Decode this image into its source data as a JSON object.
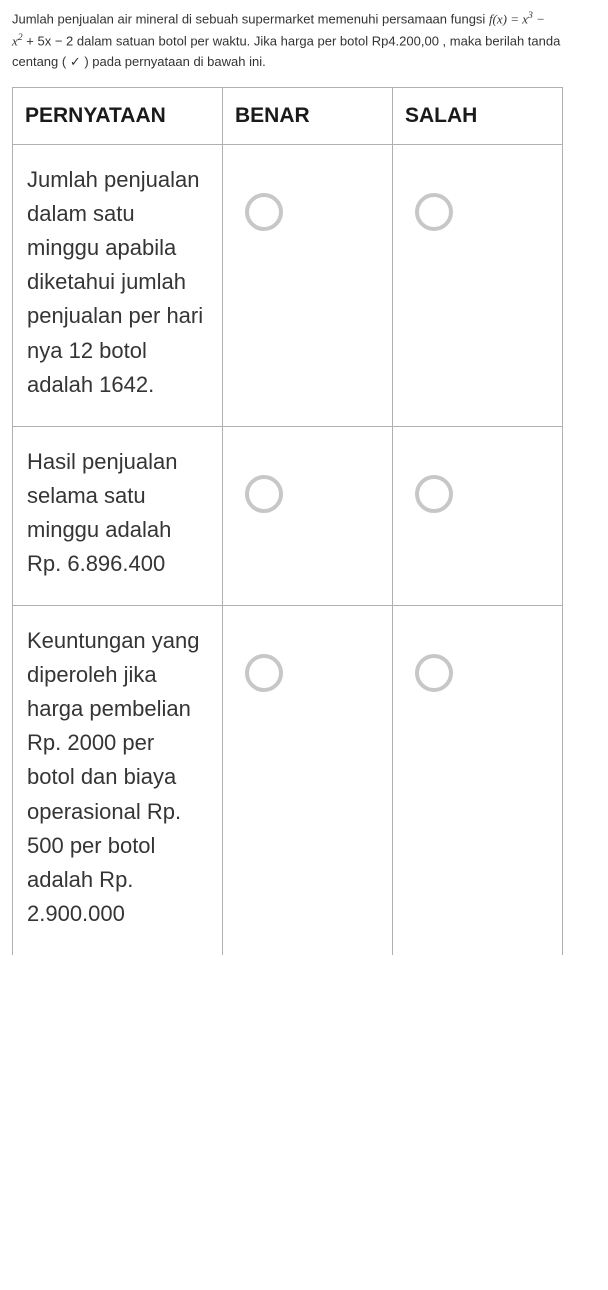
{
  "question": {
    "line1_pre": "Jumlah penjualan air mineral di sebuah supermarket memenuhi persamaan fungsi ",
    "func": "f(x) = x",
    "exp1": "3",
    "minus": " − ",
    "line2_pre": "x",
    "exp2": "2",
    "line2_mid": " + 5x − 2 dalam satuan botol per waktu. Jika harga per botol Rp4.200,00 , maka berilah tanda",
    "line3": "centang ( ✓ ) pada pernyataan di bawah ini."
  },
  "headers": {
    "stmt": "PERNYATAAN",
    "true": "BENAR",
    "false": "SALAH"
  },
  "rows": [
    {
      "statement": "Jumlah penjualan dalam satu minggu apabila diketahui jumlah penjualan per hari nya 12 botol adalah 1642."
    },
    {
      "statement": "Hasil penjualan selama satu minggu adalah Rp. 6.896.400"
    },
    {
      "statement": "Keuntungan yang diperoleh jika harga pembelian Rp. 2000 per botol dan biaya operasional Rp. 500 per botol adalah Rp. 2.900.000"
    }
  ],
  "colors": {
    "border": "#b0b0b0",
    "radio": "#c7c7c7",
    "text": "#353535",
    "background": "#ffffff"
  }
}
